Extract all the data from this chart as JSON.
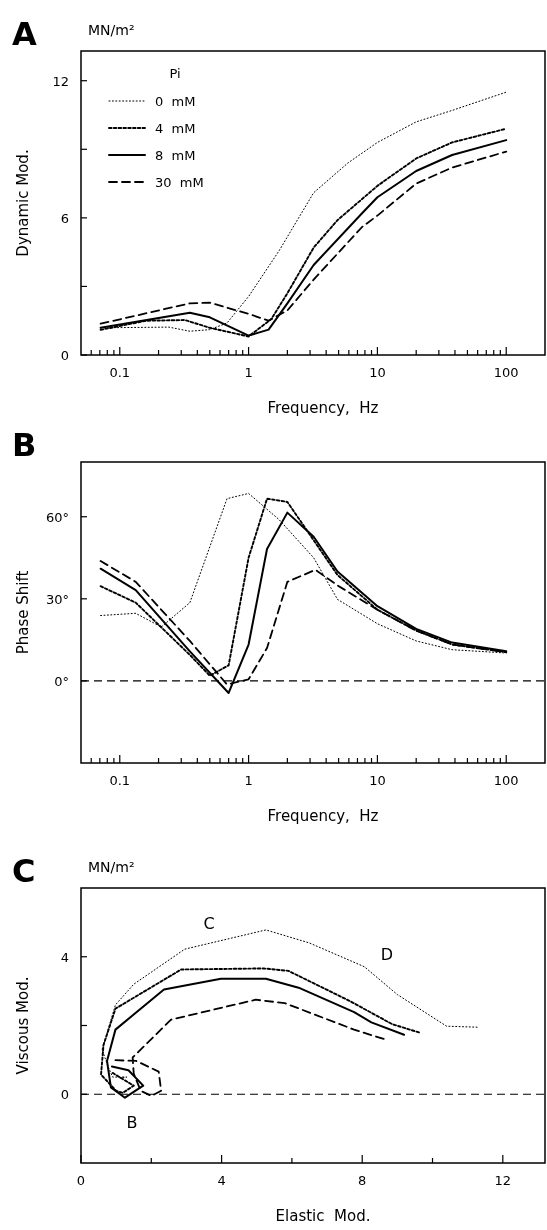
{
  "chart_data": [
    {
      "type": "line",
      "title": "A",
      "ylabel": "Dynamic Mod.",
      "xlabel": "Frequency,  Hz",
      "annotations": [
        "MN/m²"
      ],
      "log": "x",
      "legend": "top left",
      "legend_title": "Pi",
      "xlim": [
        0.05,
        200
      ],
      "ylim": [
        0,
        13.3
      ],
      "xticks": [
        {
          "value": 0.06,
          "label": null
        },
        {
          "value": 0.07,
          "label": null
        },
        {
          "value": 0.08,
          "label": null
        },
        {
          "value": 0.09,
          "label": null
        },
        0.1,
        {
          "value": 0.2,
          "label": null
        },
        {
          "value": 0.3,
          "label": null
        },
        {
          "value": 0.4,
          "label": null
        },
        {
          "value": 0.5,
          "label": null
        },
        {
          "value": 0.6,
          "label": null
        },
        {
          "value": 0.7,
          "label": null
        },
        {
          "value": 0.8,
          "label": null
        },
        {
          "value": 0.9,
          "label": null
        },
        1,
        {
          "value": 2,
          "label": null
        },
        {
          "value": 3,
          "label": null
        },
        {
          "value": 4,
          "label": null
        },
        {
          "value": 5,
          "label": null
        },
        {
          "value": 6,
          "label": null
        },
        {
          "value": 7,
          "label": null
        },
        {
          "value": 8,
          "label": null
        },
        {
          "value": 9,
          "label": null
        },
        10,
        {
          "value": 20,
          "label": null
        },
        {
          "value": 30,
          "label": null
        },
        {
          "value": 40,
          "label": null
        },
        {
          "value": 50,
          "label": null
        },
        {
          "value": 60,
          "label": null
        },
        {
          "value": 70,
          "label": null
        },
        {
          "value": 80,
          "label": null
        },
        {
          "value": 90,
          "label": null
        },
        100
      ],
      "yticks": [
        0,
        {
          "value": 3,
          "label": null
        },
        6,
        {
          "value": 9,
          "label": null
        },
        12
      ],
      "series": [
        {
          "name": "0  mM",
          "color": "#000000",
          "line_style": "dotted",
          "x": [
            0.071,
            0.24,
            0.35,
            0.5,
            0.68,
            1,
            1.72,
            3.2,
            5.9,
            10,
            20,
            38,
            100
          ],
          "values": [
            1.19,
            1.22,
            1.04,
            1.11,
            1.4,
            2.56,
            4.55,
            7.1,
            8.4,
            9.3,
            10.2,
            10.7,
            11.5
          ]
        },
        {
          "name": "4  mM",
          "color": "#000000",
          "line_style": "dotted",
          "x": [
            0.071,
            0.16,
            0.32,
            0.5,
            1,
            1.5,
            2,
            3.2,
            4.9,
            10,
            20,
            38,
            100
          ],
          "values": [
            1.1,
            1.5,
            1.53,
            1.19,
            0.81,
            1.57,
            2.7,
            4.7,
            5.9,
            7.4,
            8.6,
            9.3,
            9.9
          ]
        },
        {
          "name": "8  mM",
          "color": "#000000",
          "line_style": "solid",
          "x": [
            0.071,
            0.35,
            0.5,
            1,
            1.43,
            2,
            3.2,
            7.6,
            10,
            20,
            38,
            100
          ],
          "values": [
            1.19,
            1.85,
            1.65,
            0.85,
            1.11,
            2.26,
            3.94,
            6.2,
            6.9,
            8.05,
            8.75,
            9.4
          ]
        },
        {
          "name": "30  mM",
          "color": "#000000",
          "line_style": "dashed",
          "x": [
            0.071,
            0.35,
            0.5,
            1,
            1.43,
            2,
            3.2,
            7.6,
            10,
            20,
            38,
            100
          ],
          "values": [
            1.37,
            2.26,
            2.29,
            1.8,
            1.5,
            1.95,
            3.3,
            5.6,
            6.1,
            7.5,
            8.2,
            8.9
          ]
        }
      ]
    },
    {
      "type": "line",
      "title": "B",
      "ylabel": "Phase Shift",
      "xlabel": "Frequency,  Hz",
      "log": "x",
      "xlim": [
        0.05,
        200
      ],
      "ylim": [
        -30,
        80
      ],
      "xticks": [
        {
          "value": 0.06,
          "label": null
        },
        {
          "value": 0.07,
          "label": null
        },
        {
          "value": 0.08,
          "label": null
        },
        {
          "value": 0.09,
          "label": null
        },
        0.1,
        {
          "value": 0.2,
          "label": null
        },
        {
          "value": 0.3,
          "label": null
        },
        {
          "value": 0.4,
          "label": null
        },
        {
          "value": 0.5,
          "label": null
        },
        {
          "value": 0.6,
          "label": null
        },
        {
          "value": 0.7,
          "label": null
        },
        {
          "value": 0.8,
          "label": null
        },
        {
          "value": 0.9,
          "label": null
        },
        1,
        {
          "value": 2,
          "label": null
        },
        {
          "value": 3,
          "label": null
        },
        {
          "value": 4,
          "label": null
        },
        {
          "value": 5,
          "label": null
        },
        {
          "value": 6,
          "label": null
        },
        {
          "value": 7,
          "label": null
        },
        {
          "value": 8,
          "label": null
        },
        {
          "value": 9,
          "label": null
        },
        10,
        {
          "value": 20,
          "label": null
        },
        {
          "value": 30,
          "label": null
        },
        {
          "value": 40,
          "label": null
        },
        {
          "value": 50,
          "label": null
        },
        {
          "value": 60,
          "label": null
        },
        {
          "value": 70,
          "label": null
        },
        {
          "value": 80,
          "label": null
        },
        {
          "value": 90,
          "label": null
        },
        100
      ],
      "yticks": [
        {
          "value": 0,
          "label": "0°"
        },
        {
          "value": 30,
          "label": "30°"
        },
        {
          "value": 60,
          "label": "60°"
        }
      ],
      "ref_lines": [
        {
          "axis": "y",
          "value": 0,
          "color": "#000000",
          "line_style": "dashed"
        }
      ],
      "series": [
        {
          "color": "#000000",
          "line_style": "dotted",
          "x": [
            0.071,
            0.133,
            0.21,
            0.35,
            0.68,
            1,
            1.72,
            3.2,
            4.9,
            10,
            20,
            38,
            100
          ],
          "values": [
            23.9,
            24.7,
            19.7,
            28.6,
            66.6,
            68.5,
            59,
            45,
            29.8,
            20.9,
            14.6,
            11.4,
            10.2
          ]
        },
        {
          "color": "#000000",
          "line_style": "dotted",
          "x": [
            0.071,
            0.133,
            0.35,
            0.5,
            0.7,
            1,
            1.39,
            2,
            3.2,
            4.9,
            10,
            20,
            38,
            100
          ],
          "values": [
            34.6,
            28.6,
            9.5,
            1.9,
            5.7,
            45,
            66.6,
            65.4,
            51.4,
            38.7,
            26,
            18.4,
            13.3,
            10.5
          ]
        },
        {
          "color": "#000000",
          "line_style": "solid",
          "x": [
            0.071,
            0.133,
            0.35,
            0.7,
            1,
            1.39,
            2,
            3.2,
            4.9,
            10,
            20,
            38,
            100
          ],
          "values": [
            41,
            33.2,
            10.8,
            -4.4,
            13.3,
            48.2,
            61.5,
            52.7,
            40,
            27.3,
            19,
            14,
            10.8
          ]
        },
        {
          "color": "#000000",
          "line_style": "dashed",
          "x": [
            0.071,
            0.133,
            0.35,
            0.68,
            1,
            1.39,
            2,
            3.3,
            4.9,
            10,
            20,
            38,
            100
          ],
          "values": [
            43.8,
            36.2,
            14.6,
            -1.3,
            0.6,
            12,
            36.2,
            40.6,
            34.9,
            26,
            18.4,
            13.3,
            10.5
          ]
        }
      ]
    },
    {
      "type": "line",
      "title": "C",
      "ylabel": "Viscous Mod.",
      "xlabel": "Elastic  Mod.",
      "xlim": [
        0,
        13.2
      ],
      "ylim": [
        -2,
        6
      ],
      "annotations": [
        "MN/m²",
        "C",
        "D",
        "B"
      ],
      "xticks": [
        0,
        {
          "value": 2,
          "label": null
        },
        4,
        {
          "value": 6,
          "label": null
        },
        8,
        {
          "value": 10,
          "label": null
        },
        12
      ],
      "yticks": [
        0,
        {
          "value": 2,
          "label": null
        },
        4
      ],
      "ref_lines": [
        {
          "axis": "y",
          "value": 0,
          "color": "#000000",
          "line_style": "dashed"
        }
      ],
      "series": [
        {
          "color": "#000000",
          "line_style": "dotted",
          "x": [
            1.1,
            1.3,
            0.9,
            0.78,
            0.6,
            0.98,
            1.5,
            2.95,
            5.26,
            6.5,
            8.06,
            9.0,
            10.4,
            11.3
          ],
          "values": [
            0.48,
            0.5,
            0.5,
            0.78,
            1.3,
            2.6,
            3.2,
            4.22,
            4.78,
            4.4,
            3.71,
            2.9,
            1.98,
            1.95
          ]
        },
        {
          "color": "#000000",
          "line_style": "dotted",
          "x": [
            0.9,
            1.5,
            1.19,
            1.0,
            0.57,
            0.64,
            0.98,
            2.85,
            5.2,
            5.9,
            7.67,
            8.85,
            9.67
          ],
          "values": [
            0.62,
            0.25,
            0.04,
            0.1,
            0.57,
            1.43,
            2.49,
            3.63,
            3.66,
            3.59,
            2.7,
            2.04,
            1.78
          ]
        },
        {
          "color": "#000000",
          "line_style": "solid",
          "x": [
            0.88,
            1.35,
            1.77,
            1.25,
            0.85,
            0.74,
            0.98,
            2.36,
            3.98,
            5.26,
            6.19,
            7.77,
            8.26,
            9.19
          ],
          "values": [
            0.81,
            0.7,
            0.25,
            -0.1,
            0.2,
            0.97,
            1.88,
            3.05,
            3.36,
            3.36,
            3.1,
            2.39,
            2.09,
            1.73
          ]
        },
        {
          "color": "#000000",
          "line_style": "dashed",
          "x": [
            0.98,
            1.57,
            2.21,
            2.28,
            2.0,
            1.7,
            1.5,
            1.47,
            2.56,
            4.97,
            5.8,
            7.77,
            8.7
          ],
          "values": [
            0.99,
            0.97,
            0.66,
            0.1,
            -0.05,
            0.1,
            0.6,
            1.07,
            2.17,
            2.75,
            2.65,
            1.88,
            1.58
          ]
        }
      ]
    }
  ]
}
